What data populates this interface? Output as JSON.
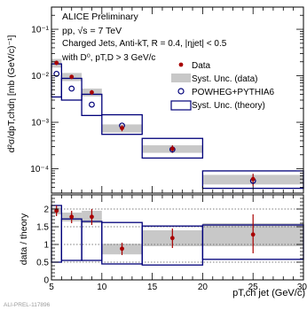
{
  "chart_data": {
    "type": "scatter",
    "x_bins": [
      [
        5,
        6
      ],
      [
        6,
        8
      ],
      [
        8,
        10
      ],
      [
        10,
        14
      ],
      [
        14,
        20
      ],
      [
        20,
        30
      ]
    ],
    "x_centers": [
      5.5,
      7,
      9,
      12,
      17,
      25
    ],
    "main": {
      "scale": "log",
      "ylim": [
        3e-05,
        0.3
      ],
      "yticks": [
        {
          "v": 0.1,
          "label": "10⁻¹"
        },
        {
          "v": 0.01,
          "label": "10⁻²"
        },
        {
          "v": 0.001,
          "label": "10⁻³"
        },
        {
          "v": 0.0001,
          "label": "10⁻⁴"
        }
      ],
      "ylabel": "d²σ/dpT,chdη [mb (GeV/c)⁻¹]",
      "data": {
        "values": [
          0.019,
          0.0095,
          0.0044,
          0.00075,
          0.00027,
          6e-05
        ],
        "syst_lo": [
          0.015,
          0.0077,
          0.0036,
          0.0006,
          0.00022,
          4.6e-05
        ],
        "syst_hi": [
          0.023,
          0.0115,
          0.0053,
          0.0009,
          0.00032,
          7.4e-05
        ],
        "stat_lo": [
          0.017,
          0.0085,
          0.0039,
          0.00064,
          0.00022,
          4.2e-05
        ],
        "stat_hi": [
          0.021,
          0.0105,
          0.0049,
          0.00086,
          0.00032,
          7.8e-05
        ]
      },
      "theory": {
        "values": [
          0.011,
          0.0053,
          0.0024,
          0.00085,
          0.00026,
          5.5e-05
        ],
        "syst_lo": [
          0.0035,
          0.003,
          0.0014,
          0.00055,
          0.00017,
          3.8e-05
        ],
        "syst_hi": [
          0.018,
          0.0088,
          0.004,
          0.00145,
          0.00045,
          9e-05
        ]
      }
    },
    "ratio": {
      "ylim": [
        0,
        2.4
      ],
      "yticks": [
        0,
        0.5,
        1,
        1.5,
        2
      ],
      "ylabel": "data / theory",
      "values": [
        1.95,
        1.78,
        1.78,
        0.88,
        1.18,
        1.28
      ],
      "stat_lo": [
        1.8,
        1.6,
        1.55,
        0.7,
        0.9,
        0.75
      ],
      "stat_hi": [
        2.1,
        1.95,
        2.0,
        1.05,
        1.45,
        1.85
      ],
      "data_syst_lo": [
        1.85,
        1.65,
        1.6,
        0.72,
        0.95,
        0.95
      ],
      "data_syst_hi": [
        2.05,
        1.9,
        1.95,
        1.02,
        1.4,
        1.6
      ],
      "theory_syst_lo": [
        0.5,
        0.55,
        0.55,
        0.45,
        0.42,
        0.58
      ],
      "theory_syst_hi": [
        2.1,
        1.72,
        1.65,
        1.62,
        1.52,
        1.55
      ],
      "ref_lines": [
        0.5,
        1,
        1.5,
        2
      ]
    },
    "xaxis": {
      "xlim": [
        5,
        30
      ],
      "xticks": [
        5,
        10,
        15,
        20,
        25,
        30
      ],
      "xlabel": "pT,ch jet (GeV/c)"
    },
    "annotations": [
      "ALICE Preliminary",
      "pp, √s = 7 TeV",
      "Charged Jets, Anti-kT, R = 0.4, |ηjet| < 0.5",
      "with D⁰, pT,D > 3 GeV/c"
    ],
    "legend": {
      "placement": "right",
      "entries": [
        "Data",
        "Syst. Unc. (data)",
        "POWHEG+PYTHIA6",
        "Syst. Unc. (theory)"
      ]
    },
    "footer": "ALI-PREL-117896",
    "colors": {
      "data": "#a80000",
      "data_syst": "#c8c8c8",
      "theory": "#00007a",
      "theory_syst": "#00007a",
      "ref_line": "#555555"
    }
  }
}
